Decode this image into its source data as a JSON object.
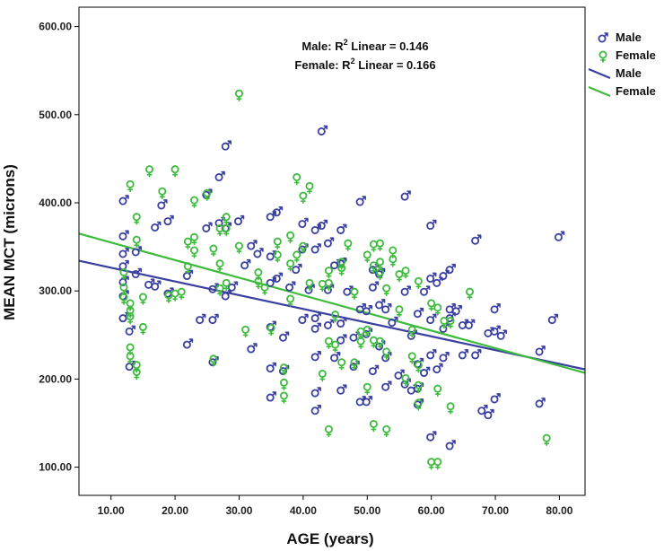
{
  "chart_data": {
    "type": "scatter",
    "xlabel": "AGE (years)",
    "ylabel": "MEAN MCT (microns)",
    "xlim": [
      5,
      84
    ],
    "ylim": [
      68,
      622
    ],
    "x_ticks": [
      10,
      20,
      30,
      40,
      50,
      60,
      70,
      80
    ],
    "x_tick_labels": [
      "10.00",
      "20.00",
      "30.00",
      "40.00",
      "50.00",
      "60.00",
      "70.00",
      "80.00"
    ],
    "y_ticks": [
      100,
      200,
      300,
      400,
      500,
      600
    ],
    "y_tick_labels": [
      "100.00",
      "200.00",
      "300.00",
      "400.00",
      "500.00",
      "600.00"
    ],
    "grid": false,
    "legend_position": "top-right",
    "annotations": {
      "male_prefix": "Male: R",
      "female_prefix": "Female: R",
      "sup": "2",
      "male_suffix": " Linear = 0.146",
      "female_suffix": " Linear = 0.166"
    },
    "series": [
      {
        "name": "Male",
        "marker": "male-symbol",
        "color": "#3a3fa2",
        "points": [
          [
            12,
            403
          ],
          [
            12,
            363
          ],
          [
            12,
            343
          ],
          [
            12,
            329
          ],
          [
            12,
            311
          ],
          [
            12,
            295
          ],
          [
            12,
            270
          ],
          [
            13,
            255
          ],
          [
            13,
            215
          ],
          [
            14,
            345
          ],
          [
            14,
            320
          ],
          [
            16,
            308
          ],
          [
            17,
            373
          ],
          [
            17,
            306
          ],
          [
            18,
            398
          ],
          [
            19,
            380
          ],
          [
            19,
            298
          ],
          [
            22,
            240
          ],
          [
            22,
            318
          ],
          [
            24,
            268
          ],
          [
            25,
            410
          ],
          [
            25,
            372
          ],
          [
            26,
            268
          ],
          [
            26,
            220
          ],
          [
            26,
            303
          ],
          [
            27,
            430
          ],
          [
            27,
            378
          ],
          [
            28,
            465
          ],
          [
            28,
            372
          ],
          [
            28,
            295
          ],
          [
            29,
            305
          ],
          [
            30,
            380
          ],
          [
            31,
            330
          ],
          [
            32,
            235
          ],
          [
            32,
            352
          ],
          [
            33,
            343
          ],
          [
            35,
            385
          ],
          [
            35,
            340
          ],
          [
            35,
            310
          ],
          [
            35,
            260
          ],
          [
            35,
            213
          ],
          [
            35,
            180
          ],
          [
            36,
            390
          ],
          [
            36,
            315
          ],
          [
            37,
            248
          ],
          [
            37,
            210
          ],
          [
            38,
            305
          ],
          [
            39,
            325
          ],
          [
            40,
            377
          ],
          [
            40,
            348
          ],
          [
            40,
            268
          ],
          [
            41,
            302
          ],
          [
            42,
            370
          ],
          [
            42,
            348
          ],
          [
            42,
            270
          ],
          [
            42,
            258
          ],
          [
            42,
            226
          ],
          [
            42,
            185
          ],
          [
            42,
            165
          ],
          [
            43,
            482
          ],
          [
            43,
            375
          ],
          [
            44,
            355
          ],
          [
            44,
            302
          ],
          [
            44,
            262
          ],
          [
            45,
            330
          ],
          [
            45,
            225
          ],
          [
            46,
            370
          ],
          [
            46,
            332
          ],
          [
            46,
            264
          ],
          [
            46,
            245
          ],
          [
            46,
            188
          ],
          [
            47,
            300
          ],
          [
            48,
            248
          ],
          [
            48,
            215
          ],
          [
            49,
            402
          ],
          [
            49,
            280
          ],
          [
            49,
            175
          ],
          [
            50,
            278
          ],
          [
            50,
            252
          ],
          [
            50,
            175
          ],
          [
            51,
            325
          ],
          [
            51,
            305
          ],
          [
            51,
            210
          ],
          [
            52,
            320
          ],
          [
            52,
            285
          ],
          [
            52,
            238
          ],
          [
            53,
            280
          ],
          [
            53,
            225
          ],
          [
            53,
            192
          ],
          [
            54,
            265
          ],
          [
            55,
            205
          ],
          [
            56,
            408
          ],
          [
            56,
            300
          ],
          [
            56,
            195
          ],
          [
            57,
            250
          ],
          [
            57,
            188
          ],
          [
            58,
            275
          ],
          [
            58,
            218
          ],
          [
            58,
            190
          ],
          [
            58,
            172
          ],
          [
            59,
            300
          ],
          [
            59,
            208
          ],
          [
            60,
            375
          ],
          [
            60,
            315
          ],
          [
            60,
            268
          ],
          [
            60,
            228
          ],
          [
            60,
            135
          ],
          [
            61,
            310
          ],
          [
            61,
            212
          ],
          [
            62,
            318
          ],
          [
            62,
            258
          ],
          [
            62,
            225
          ],
          [
            63,
            325
          ],
          [
            63,
            280
          ],
          [
            63,
            270
          ],
          [
            63,
            125
          ],
          [
            64,
            278
          ],
          [
            65,
            262
          ],
          [
            65,
            228
          ],
          [
            66,
            262
          ],
          [
            67,
            358
          ],
          [
            67,
            228
          ],
          [
            68,
            165
          ],
          [
            69,
            160
          ],
          [
            69,
            253
          ],
          [
            70,
            280
          ],
          [
            70,
            255
          ],
          [
            70,
            178
          ],
          [
            71,
            250
          ],
          [
            77,
            232
          ],
          [
            77,
            173
          ],
          [
            79,
            268
          ],
          [
            80,
            362
          ]
        ],
        "fit": {
          "slope": -1.56,
          "intercept": 342
        }
      },
      {
        "name": "Female",
        "marker": "female-symbol",
        "color": "#3dbb3d",
        "points": [
          [
            12,
            320
          ],
          [
            12,
            303
          ],
          [
            12,
            292
          ],
          [
            13,
            420
          ],
          [
            13,
            285
          ],
          [
            13,
            277
          ],
          [
            13,
            270
          ],
          [
            13,
            235
          ],
          [
            13,
            225
          ],
          [
            14,
            383
          ],
          [
            14,
            357
          ],
          [
            14,
            215
          ],
          [
            14,
            207
          ],
          [
            15,
            292
          ],
          [
            15,
            258
          ],
          [
            16,
            437
          ],
          [
            18,
            412
          ],
          [
            19,
            294
          ],
          [
            20,
            437
          ],
          [
            20,
            296
          ],
          [
            21,
            298
          ],
          [
            22,
            355
          ],
          [
            22,
            327
          ],
          [
            23,
            402
          ],
          [
            23,
            360
          ],
          [
            23,
            345
          ],
          [
            25,
            410
          ],
          [
            26,
            222
          ],
          [
            26,
            347
          ],
          [
            27,
            330
          ],
          [
            27,
            302
          ],
          [
            27,
            370
          ],
          [
            28,
            383
          ],
          [
            28,
            370
          ],
          [
            28,
            308
          ],
          [
            30,
            350
          ],
          [
            30,
            523
          ],
          [
            31,
            255
          ],
          [
            33,
            310
          ],
          [
            33,
            320
          ],
          [
            34,
            303
          ],
          [
            35,
            257
          ],
          [
            36,
            355
          ],
          [
            36,
            340
          ],
          [
            37,
            212
          ],
          [
            37,
            195
          ],
          [
            37,
            180
          ],
          [
            38,
            362
          ],
          [
            38,
            330
          ],
          [
            38,
            290
          ],
          [
            39,
            428
          ],
          [
            39,
            340
          ],
          [
            40,
            407
          ],
          [
            40,
            350
          ],
          [
            41,
            418
          ],
          [
            41,
            308
          ],
          [
            43,
            307
          ],
          [
            43,
            205
          ],
          [
            44,
            322
          ],
          [
            44,
            308
          ],
          [
            44,
            242
          ],
          [
            44,
            142
          ],
          [
            45,
            272
          ],
          [
            45,
            238
          ],
          [
            46,
            332
          ],
          [
            46,
            325
          ],
          [
            46,
            218
          ],
          [
            47,
            353
          ],
          [
            48,
            298
          ],
          [
            48,
            218
          ],
          [
            49,
            253
          ],
          [
            49,
            242
          ],
          [
            50,
            340
          ],
          [
            50,
            255
          ],
          [
            50,
            190
          ],
          [
            51,
            352
          ],
          [
            51,
            328
          ],
          [
            51,
            243
          ],
          [
            51,
            148
          ],
          [
            52,
            353
          ],
          [
            52,
            332
          ],
          [
            52,
            320
          ],
          [
            52,
            242
          ],
          [
            53,
            302
          ],
          [
            53,
            230
          ],
          [
            53,
            142
          ],
          [
            54,
            345
          ],
          [
            54,
            335
          ],
          [
            55,
            318
          ],
          [
            55,
            278
          ],
          [
            56,
            322
          ],
          [
            56,
            200
          ],
          [
            57,
            255
          ],
          [
            57,
            225
          ],
          [
            58,
            310
          ],
          [
            58,
            215
          ],
          [
            58,
            192
          ],
          [
            58,
            172
          ],
          [
            60,
            285
          ],
          [
            60,
            105
          ],
          [
            61,
            280
          ],
          [
            61,
            188
          ],
          [
            61,
            105
          ],
          [
            62,
            265
          ],
          [
            63,
            265
          ],
          [
            63,
            168
          ],
          [
            66,
            298
          ],
          [
            78,
            132
          ]
        ],
        "fit": {
          "slope": -2.0,
          "intercept": 375
        }
      }
    ]
  }
}
